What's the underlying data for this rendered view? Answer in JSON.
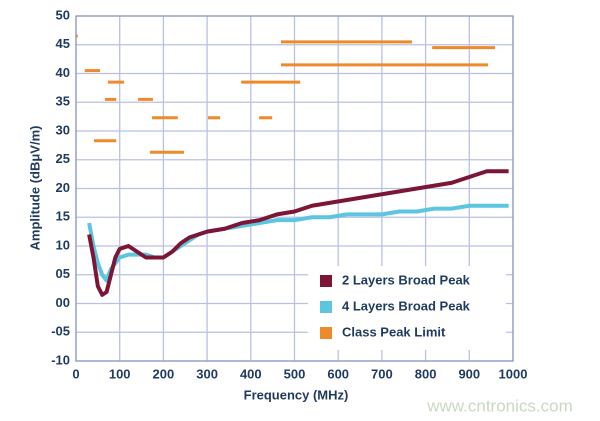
{
  "chart_data": {
    "type": "line",
    "x_label": "Frequency (MHz)",
    "y_label": "Amplitude (dBμV/m)",
    "watermark": "www.cntronics.com",
    "xlim": [
      0,
      1000
    ],
    "xticks": [
      0,
      100,
      200,
      300,
      400,
      500,
      600,
      700,
      800,
      900,
      1000
    ],
    "ylim": [
      -10,
      50
    ],
    "yticks": [
      -10,
      {
        "value": -5,
        "label": "-05"
      },
      {
        "value": 0,
        "label": "00"
      },
      {
        "value": 5,
        "label": "05"
      },
      10,
      15,
      20,
      25,
      30,
      35,
      40,
      45,
      50
    ],
    "grid": true,
    "x": [
      30,
      40,
      50,
      60,
      70,
      80,
      90,
      100,
      120,
      140,
      160,
      180,
      200,
      220,
      240,
      260,
      280,
      300,
      340,
      380,
      420,
      460,
      500,
      540,
      580,
      620,
      660,
      700,
      740,
      780,
      820,
      860,
      900,
      940,
      980,
      990
    ],
    "series": [
      {
        "name": "2 Layers Broad Peak",
        "color": "#7d1635",
        "values": [
          12,
          8,
          3,
          1.5,
          2,
          5,
          8,
          9.5,
          10,
          9,
          8,
          8,
          8,
          9,
          10.5,
          11.5,
          12,
          12.5,
          13,
          14,
          14.5,
          15.5,
          16,
          17,
          17.5,
          18,
          18.5,
          19,
          19.5,
          20,
          20.5,
          21,
          22,
          23,
          23,
          23
        ]
      },
      {
        "name": "4 Layers Broad Peak",
        "color": "#5cc6e0",
        "values": [
          14,
          10,
          7,
          5,
          4,
          6,
          7,
          8,
          8.5,
          8.5,
          8.5,
          8,
          8,
          9,
          10,
          11,
          12,
          12.5,
          13,
          13.5,
          14,
          14.5,
          14.5,
          15,
          15,
          15.5,
          15.5,
          15.5,
          16,
          16,
          16.5,
          16.5,
          17,
          17,
          17,
          17
        ]
      },
      {
        "name": "Class Peak Limit",
        "color": "#ef8a2a",
        "segments": [
          {
            "x": [
              0,
              4
            ],
            "y": 46.5
          },
          {
            "x": [
              20,
              55
            ],
            "y": 40.5
          },
          {
            "x": [
              73,
              110
            ],
            "y": 38.5
          },
          {
            "x": [
              66,
              92
            ],
            "y": 35.5
          },
          {
            "x": [
              142,
              176
            ],
            "y": 35.5
          },
          {
            "x": [
              174,
              233
            ],
            "y": 32.3
          },
          {
            "x": [
              41,
              92
            ],
            "y": 28.3
          },
          {
            "x": [
              169,
              247
            ],
            "y": 26.3
          },
          {
            "x": [
              302,
              330
            ],
            "y": 32.3
          },
          {
            "x": [
              419,
              449
            ],
            "y": 32.3
          },
          {
            "x": [
              378,
              513
            ],
            "y": 38.5
          },
          {
            "x": [
              469,
              769
            ],
            "y": 45.5
          },
          {
            "x": [
              469,
              943
            ],
            "y": 41.5
          },
          {
            "x": [
              815,
              959
            ],
            "y": 44.5
          }
        ]
      }
    ]
  }
}
